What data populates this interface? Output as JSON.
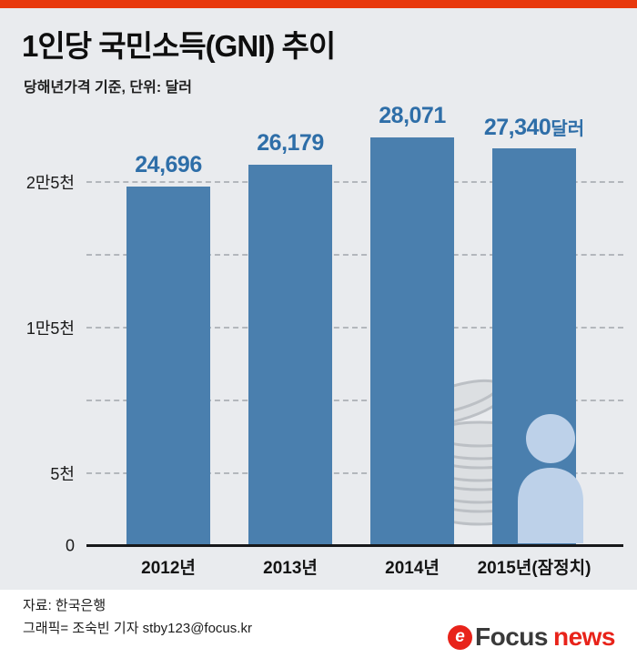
{
  "header": {
    "title": "1인당 국민소득(GNI) 추이",
    "subtitle": "당해년가격 기준, 단위: 달러"
  },
  "chart_data": {
    "type": "bar",
    "title": "1인당 국민소득(GNI) 추이",
    "subtitle": "당해년가격 기준, 단위: 달러",
    "unit": "달러",
    "categories": [
      "2012년",
      "2013년",
      "2014년",
      "2015년(잠정치)"
    ],
    "values": [
      24696,
      26179,
      28071,
      27340
    ],
    "value_labels": [
      {
        "number": "24,696",
        "suffix": ""
      },
      {
        "number": "26,179",
        "suffix": ""
      },
      {
        "number": "28,071",
        "suffix": ""
      },
      {
        "number": "27,340",
        "suffix": "달러"
      }
    ],
    "ylim": [
      0,
      28500
    ],
    "yticks": [
      {
        "value": 25000,
        "label": "2만5천",
        "gridline": true
      },
      {
        "value": 20000,
        "label": "",
        "gridline": true
      },
      {
        "value": 15000,
        "label": "1만5천",
        "gridline": true
      },
      {
        "value": 10000,
        "label": "",
        "gridline": true
      },
      {
        "value": 5000,
        "label": "5천",
        "gridline": true
      },
      {
        "value": 0,
        "label": "0",
        "gridline": false
      }
    ],
    "grid": "horizontal-dashed",
    "legend": false,
    "bar_color": "#4a7fae",
    "value_label_color": "#2e6ea8"
  },
  "watermarks": [
    "coins-stack",
    "person"
  ],
  "footer": {
    "source": "자료: 한국은행",
    "credit": "그래픽= 조숙빈 기자 stby123@focus.kr",
    "logo": {
      "symbol": "e",
      "brand": "Focus",
      "suffix": "news"
    }
  },
  "colors": {
    "top_bar": "#e8380d",
    "panel_background": "#e9ebee",
    "bar": "#4a7fae",
    "value_label": "#2e6ea8",
    "gridline": "#b3b7bc",
    "baseline": "#17181a",
    "coin_fill": "#dcdfe2",
    "coin_stroke": "#bcc0c5",
    "person_fill": "#bdd1e9",
    "logo_red": "#e8231a"
  }
}
